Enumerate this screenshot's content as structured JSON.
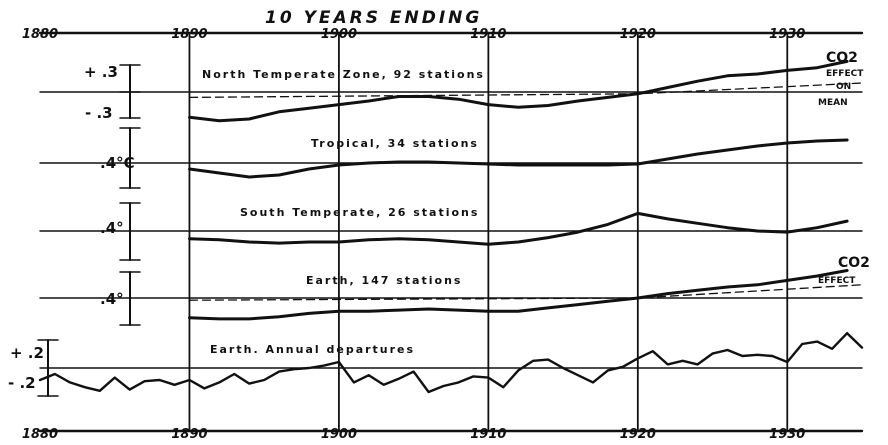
{
  "chart_data": {
    "type": "line",
    "title": "10 YEARS ENDING",
    "x_ticks_top": [
      "1880",
      "1890",
      "1900",
      "1910",
      "1920",
      "1930"
    ],
    "x_ticks_bottom": [
      "1880",
      "1890",
      "1900",
      "1910",
      "1920",
      "1930"
    ],
    "xlim": [
      1880,
      1935
    ],
    "panels": [
      {
        "name": "North Temperate Zone, 92 stations",
        "scale_labels": [
          "+ .3",
          "- .3"
        ],
        "annotation": [
          "CO2",
          "EFFECT",
          "ON",
          "MEAN"
        ],
        "x": [
          1890,
          1892,
          1894,
          1896,
          1898,
          1900,
          1902,
          1904,
          1906,
          1908,
          1910,
          1912,
          1914,
          1916,
          1918,
          1920,
          1922,
          1924,
          1926,
          1928,
          1930,
          1932,
          1934
        ],
        "values": [
          -0.28,
          -0.32,
          -0.3,
          -0.22,
          -0.18,
          -0.14,
          -0.1,
          -0.05,
          -0.05,
          -0.08,
          -0.14,
          -0.17,
          -0.15,
          -0.1,
          -0.06,
          -0.02,
          0.05,
          0.12,
          0.18,
          0.2,
          0.24,
          0.27,
          0.34
        ],
        "co2_effect": {
          "x": [
            1890,
            1920,
            1935
          ],
          "values": [
            -0.06,
            -0.02,
            0.1
          ]
        }
      },
      {
        "name": "Tropical, 34 stations",
        "scale_labels": [
          ".4°C"
        ],
        "x": [
          1890,
          1892,
          1894,
          1896,
          1898,
          1900,
          1902,
          1904,
          1906,
          1908,
          1910,
          1912,
          1914,
          1916,
          1918,
          1920,
          1922,
          1924,
          1926,
          1928,
          1930,
          1932,
          1934
        ],
        "values": [
          -0.06,
          -0.1,
          -0.14,
          -0.12,
          -0.06,
          -0.02,
          0.0,
          0.01,
          0.01,
          0.0,
          -0.01,
          -0.02,
          -0.02,
          -0.02,
          -0.02,
          -0.01,
          0.04,
          0.09,
          0.13,
          0.17,
          0.2,
          0.22,
          0.23
        ]
      },
      {
        "name": "South Temperate, 26 stations",
        "scale_labels": [
          ".4°"
        ],
        "x": [
          1890,
          1892,
          1894,
          1896,
          1898,
          1900,
          1902,
          1904,
          1906,
          1908,
          1910,
          1912,
          1914,
          1916,
          1918,
          1920,
          1922,
          1924,
          1926,
          1928,
          1930,
          1932,
          1934
        ],
        "values": [
          -0.07,
          -0.08,
          -0.1,
          -0.11,
          -0.1,
          -0.1,
          -0.08,
          -0.07,
          -0.08,
          -0.1,
          -0.12,
          -0.1,
          -0.06,
          -0.01,
          0.06,
          0.16,
          0.11,
          0.07,
          0.03,
          0.0,
          -0.01,
          0.03,
          0.09
        ]
      },
      {
        "name": "Earth, 147 stations",
        "scale_labels": [
          ".4°"
        ],
        "annotation": [
          "CO2",
          "EFFECT"
        ],
        "x": [
          1890,
          1892,
          1894,
          1896,
          1898,
          1900,
          1902,
          1904,
          1906,
          1908,
          1910,
          1912,
          1914,
          1916,
          1918,
          1920,
          1922,
          1924,
          1926,
          1928,
          1930,
          1932,
          1934
        ],
        "values": [
          -0.18,
          -0.19,
          -0.19,
          -0.17,
          -0.14,
          -0.12,
          -0.12,
          -0.11,
          -0.1,
          -0.11,
          -0.12,
          -0.12,
          -0.09,
          -0.06,
          -0.03,
          0.0,
          0.04,
          0.07,
          0.1,
          0.12,
          0.16,
          0.2,
          0.25
        ],
        "co2_effect": {
          "x": [
            1890,
            1920,
            1935
          ],
          "values": [
            -0.02,
            0.0,
            0.12
          ]
        }
      },
      {
        "name": "Earth. Annual departures",
        "scale_labels": [
          "+ .2",
          "- .2"
        ],
        "x": [
          1880,
          1881,
          1882,
          1883,
          1884,
          1885,
          1886,
          1887,
          1888,
          1889,
          1890,
          1891,
          1892,
          1893,
          1894,
          1895,
          1896,
          1897,
          1898,
          1899,
          1900,
          1901,
          1902,
          1903,
          1904,
          1905,
          1906,
          1907,
          1908,
          1909,
          1910,
          1911,
          1912,
          1913,
          1914,
          1915,
          1916,
          1917,
          1918,
          1919,
          1920,
          1921,
          1922,
          1923,
          1924,
          1925,
          1926,
          1927,
          1928,
          1929,
          1930,
          1931,
          1932,
          1933,
          1934,
          1935
        ],
        "values": [
          -0.1,
          -0.05,
          -0.12,
          -0.16,
          -0.19,
          -0.08,
          -0.18,
          -0.11,
          -0.1,
          -0.14,
          -0.1,
          -0.17,
          -0.12,
          -0.05,
          -0.13,
          -0.1,
          -0.03,
          -0.01,
          0.0,
          0.02,
          0.05,
          -0.12,
          -0.06,
          -0.14,
          -0.09,
          -0.03,
          -0.2,
          -0.15,
          -0.12,
          -0.07,
          -0.08,
          -0.16,
          -0.02,
          0.06,
          0.07,
          0.0,
          -0.06,
          -0.12,
          -0.02,
          0.01,
          0.08,
          0.14,
          0.03,
          0.06,
          0.03,
          0.12,
          0.15,
          0.1,
          0.11,
          0.1,
          0.05,
          0.2,
          0.22,
          0.16,
          0.29,
          0.17
        ]
      }
    ],
    "grid": false,
    "legend": "none"
  }
}
